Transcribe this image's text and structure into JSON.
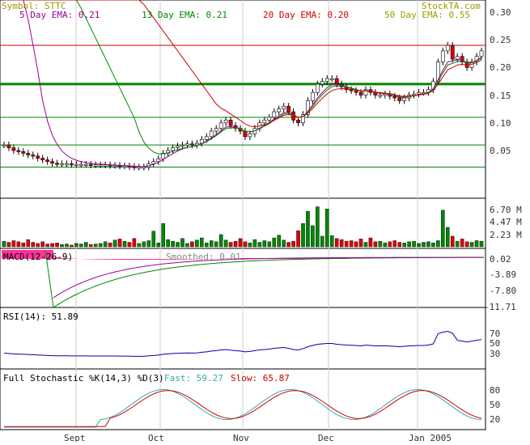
{
  "header": {
    "symbol_label": "Symbol: STTC",
    "brand": "StockTA.com",
    "ema_labels": [
      {
        "text": "5 Day EMA: 0.21",
        "color": "#990099"
      },
      {
        "text": "13 Day EMA: 0.21",
        "color": "#008800"
      },
      {
        "text": "20 Day EMA: 0.20",
        "color": "#cc0000"
      },
      {
        "text": "50 Day EMA: 0.55",
        "color": "#999900"
      }
    ]
  },
  "colors": {
    "up_candle": "#ffffff",
    "down_candle": "#dd0000",
    "volume_up": "#008800",
    "volume_down": "#dd0000",
    "grid_green": "#008800",
    "grid_red": "#cc0000",
    "rsi_line": "#0000aa",
    "macd_fill": "#ff3399",
    "stoch_fast": "#33aaaa",
    "stoch_slow": "#cc0000",
    "axis_text": "#333333"
  },
  "chart_data": [
    {
      "type": "candlestick",
      "panel": "price",
      "y_ticks": [
        "0.30",
        "0.25",
        "0.20",
        "0.15",
        "0.10",
        "0.05"
      ],
      "ylim": [
        0.0,
        0.31
      ],
      "horizontal_lines": [
        {
          "value": 0.24,
          "color": "red"
        },
        {
          "value": 0.17,
          "color": "green",
          "heavy": true
        },
        {
          "value": 0.11,
          "color": "green"
        },
        {
          "value": 0.06,
          "color": "green"
        },
        {
          "value": 0.02,
          "color": "green"
        }
      ],
      "x_labels": [
        "Sept",
        "Oct",
        "Nov",
        "Dec",
        "Jan 2005"
      ],
      "close_series": [
        0.06,
        0.055,
        0.05,
        0.048,
        0.045,
        0.042,
        0.04,
        0.036,
        0.033,
        0.03,
        0.027,
        0.026,
        0.026,
        0.026,
        0.025,
        0.025,
        0.025,
        0.025,
        0.024,
        0.024,
        0.024,
        0.024,
        0.023,
        0.023,
        0.022,
        0.022,
        0.021,
        0.02,
        0.02,
        0.02,
        0.026,
        0.03,
        0.035,
        0.045,
        0.05,
        0.055,
        0.058,
        0.06,
        0.062,
        0.06,
        0.063,
        0.07,
        0.075,
        0.085,
        0.09,
        0.1,
        0.105,
        0.095,
        0.09,
        0.085,
        0.075,
        0.08,
        0.09,
        0.1,
        0.105,
        0.11,
        0.12,
        0.125,
        0.13,
        0.12,
        0.105,
        0.1,
        0.115,
        0.14,
        0.155,
        0.17,
        0.175,
        0.18,
        0.18,
        0.17,
        0.165,
        0.16,
        0.158,
        0.155,
        0.15,
        0.16,
        0.155,
        0.15,
        0.15,
        0.152,
        0.148,
        0.145,
        0.14,
        0.145,
        0.15,
        0.152,
        0.155,
        0.155,
        0.16,
        0.175,
        0.21,
        0.23,
        0.24,
        0.215,
        0.22,
        0.21,
        0.2,
        0.21,
        0.22,
        0.23
      ]
    },
    {
      "type": "bar",
      "panel": "volume",
      "y_ticks": [
        "6.70 M",
        "4.47 M",
        "2.23 M"
      ],
      "ylim": [
        0,
        7.5
      ],
      "values": [
        1.0,
        0.8,
        1.1,
        0.9,
        0.7,
        1.3,
        0.8,
        0.6,
        0.9,
        0.5,
        0.6,
        0.7,
        0.4,
        0.5,
        0.3,
        0.6,
        0.5,
        0.8,
        0.4,
        0.5,
        0.6,
        0.9,
        0.7,
        1.2,
        1.4,
        1.0,
        0.8,
        1.5,
        0.6,
        0.9,
        1.1,
        2.8,
        0.7,
        4.2,
        1.3,
        1.0,
        0.8,
        1.5,
        0.6,
        0.9,
        1.2,
        1.6,
        0.7,
        1.1,
        0.9,
        2.2,
        1.2,
        0.8,
        1.0,
        1.5,
        0.9,
        0.7,
        1.3,
        0.8,
        1.1,
        0.9,
        1.6,
        2.1,
        1.2,
        0.8,
        1.0,
        2.9,
        4.2,
        6.4,
        3.8,
        7.2,
        1.9,
        6.8,
        2.0,
        1.5,
        1.3,
        1.0,
        1.1,
        0.9,
        1.4,
        0.8,
        1.6,
        0.9,
        1.0,
        0.7,
        0.9,
        1.1,
        0.8,
        0.7,
        0.9,
        1.0,
        0.6,
        0.8,
        0.9,
        0.7,
        1.1,
        6.6,
        3.5,
        1.9,
        1.0,
        1.4,
        0.9,
        0.8,
        1.1,
        1.0
      ]
    },
    {
      "type": "line",
      "panel": "macd",
      "label": "MACD(12-26-9)",
      "smoothed_label": "Smoothed: 0.01",
      "y_ticks": [
        "0.02",
        "-3.89",
        "-7.80",
        "-11.71"
      ],
      "ylim": [
        -12.5,
        0.5
      ]
    },
    {
      "type": "line",
      "panel": "rsi",
      "label": "RSI(14): 51.89",
      "y_ticks": [
        "70",
        "50",
        "30"
      ],
      "ylim": [
        0,
        100
      ]
    },
    {
      "type": "line",
      "panel": "stochastic",
      "label": "Full Stochastic %K(14,3) %D(3)",
      "fast_label": "Fast: 59.27",
      "slow_label": "Slow: 65.87",
      "y_ticks": [
        "80",
        "50",
        "20"
      ],
      "ylim": [
        0,
        100
      ]
    }
  ]
}
